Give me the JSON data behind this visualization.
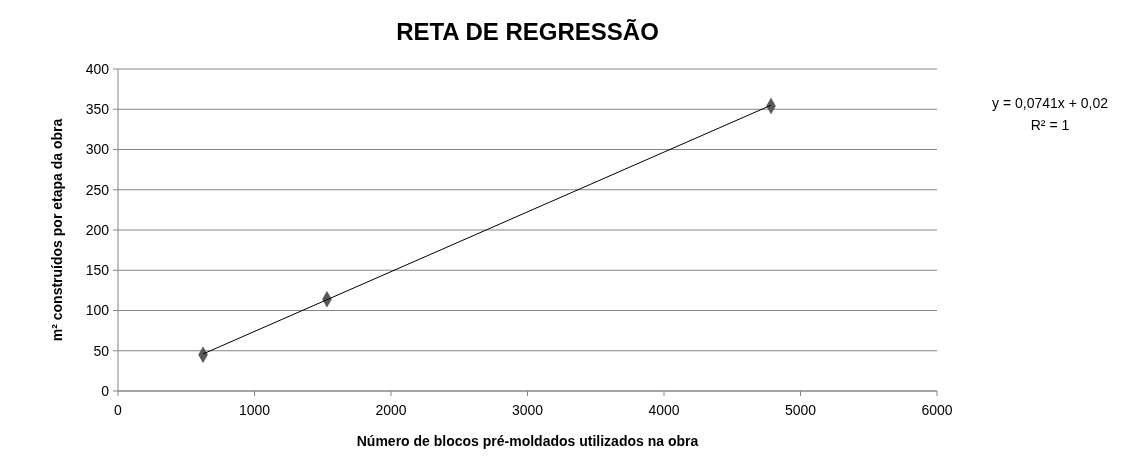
{
  "chart_data": {
    "type": "scatter",
    "title": "RETA DE REGRESSÃO",
    "xlabel": "Número de blocos pré-moldados utilizados na obra",
    "ylabel": "m² construídos por etapa da obra",
    "xlim": [
      0,
      6000
    ],
    "xticks": [
      0,
      1000,
      2000,
      3000,
      4000,
      5000,
      6000
    ],
    "ylim": [
      0,
      400
    ],
    "yticks": [
      0,
      50,
      100,
      150,
      200,
      250,
      300,
      350,
      400
    ],
    "grid": "y",
    "series": [
      {
        "color": "#595959",
        "marker": "diamond",
        "x": [
          623,
          1531,
          4784
        ],
        "values": [
          45,
          114,
          354
        ]
      },
      {
        "type": "line",
        "color": "#000000",
        "x": [
          623,
          4784
        ],
        "values": [
          46,
          355
        ]
      }
    ],
    "annotations": [
      "y = 0,0741x + 0,02",
      "R² = 1"
    ]
  }
}
